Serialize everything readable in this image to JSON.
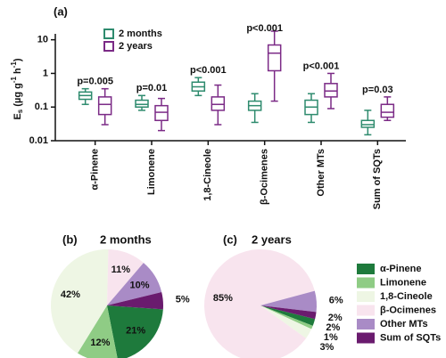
{
  "chart_data": [
    {
      "type": "box",
      "panel": "(a)",
      "ylabel": {
        "text": "E",
        "sub": "s",
        "unit": " (µg g",
        "exp1": "-1",
        "mid": " h",
        "exp2": "-1",
        "end": ")"
      },
      "categories": [
        "α-Pinene",
        "Limonene",
        "1,8-Cineole",
        "β-Ocimenes",
        "Other MTs",
        "Sum of SQTs"
      ],
      "annotations": [
        "p=0.005",
        "p=0.01",
        "p<0.001",
        "p<0.001",
        "p<0.001",
        "p=0.03"
      ],
      "log_scale": true,
      "ylim": [
        0.01,
        15
      ],
      "yticks": [
        0.01,
        0.1,
        1,
        10
      ],
      "series": [
        {
          "name": "2 months",
          "color": "#2e8b6e",
          "min": [
            0.12,
            0.08,
            0.22,
            0.035,
            0.035,
            0.015
          ],
          "q1": [
            0.17,
            0.1,
            0.3,
            0.08,
            0.06,
            0.025
          ],
          "median": [
            0.22,
            0.12,
            0.4,
            0.11,
            0.1,
            0.03
          ],
          "q3": [
            0.28,
            0.16,
            0.55,
            0.15,
            0.16,
            0.04
          ],
          "max": [
            0.35,
            0.22,
            0.75,
            0.25,
            0.25,
            0.08
          ]
        },
        {
          "name": "2 years",
          "color": "#7b2a86",
          "min": [
            0.03,
            0.02,
            0.03,
            0.15,
            0.09,
            0.04
          ],
          "q1": [
            0.06,
            0.04,
            0.08,
            1.2,
            0.2,
            0.05
          ],
          "median": [
            0.12,
            0.07,
            0.12,
            4,
            0.3,
            0.07
          ],
          "q3": [
            0.2,
            0.11,
            0.2,
            7,
            0.5,
            0.12
          ],
          "max": [
            0.35,
            0.18,
            0.45,
            18,
            1,
            0.2
          ]
        }
      ]
    },
    {
      "type": "pie",
      "panel": "(b)",
      "title": "2 months",
      "values": [
        21,
        12,
        42,
        11,
        10,
        5
      ],
      "value_labels": [
        "21%",
        "12%",
        "42%",
        "11%",
        "10%",
        "5%"
      ],
      "colors": [
        "#1e7a3c",
        "#8fcc85",
        "#eef6e4",
        "#f8e4ee",
        "#a98bc6",
        "#6a1b6e"
      ]
    },
    {
      "type": "pie",
      "panel": "(c)",
      "title": "2 years",
      "legend": "right",
      "categories": [
        "α-Pinene",
        "Limonene",
        "1,8-Cineole",
        "β-Ocimenes",
        "Other MTs",
        "Sum of SQTs"
      ],
      "values": [
        2,
        1,
        3,
        85,
        6,
        2
      ],
      "value_labels": [
        "2%",
        "1%",
        "3%",
        "85%",
        "6%",
        "2%"
      ],
      "colors": [
        "#1e7a3c",
        "#8fcc85",
        "#eef6e4",
        "#f8e4ee",
        "#a98bc6",
        "#6a1b6e"
      ]
    }
  ]
}
